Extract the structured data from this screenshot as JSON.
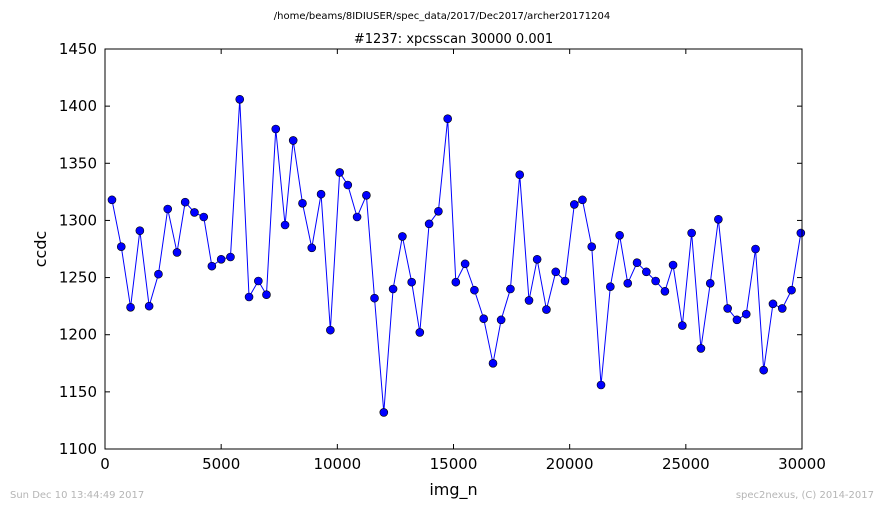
{
  "header": {
    "path": "/home/beams/8IDIUSER/spec_data/2017/Dec2017/archer20171204",
    "title": "#1237: xpcsscan 30000 0.001"
  },
  "footer": {
    "timestamp": "Sun Dec 10 13:44:49 2017",
    "credit": "spec2nexus, (C) 2014-2017"
  },
  "chart_data": {
    "type": "line",
    "title": "#1237: xpcsscan 30000 0.001",
    "xlabel": "img_n",
    "ylabel": "ccdc",
    "xlim": [
      0,
      30000
    ],
    "ylim": [
      1100,
      1450
    ],
    "xticks": [
      0,
      5000,
      10000,
      15000,
      20000,
      25000,
      30000
    ],
    "yticks": [
      1100,
      1150,
      1200,
      1250,
      1300,
      1350,
      1400,
      1450
    ],
    "grid": false,
    "legend": "none",
    "line_color": "#0000ff",
    "marker": "circle",
    "x": [
      300,
      700,
      1100,
      1500,
      1900,
      2300,
      2700,
      3100,
      3450,
      3850,
      4250,
      4600,
      5000,
      5400,
      5800,
      6200,
      6600,
      6950,
      7350,
      7750,
      8100,
      8500,
      8900,
      9300,
      9700,
      10100,
      10450,
      10850,
      11250,
      11600,
      12000,
      12400,
      12800,
      13200,
      13550,
      13950,
      14350,
      14750,
      15100,
      15500,
      15900,
      16300,
      16700,
      17050,
      17450,
      17850,
      18250,
      18600,
      19000,
      19400,
      19800,
      20200,
      20550,
      20950,
      21350,
      21750,
      22150,
      22500,
      22900,
      23300,
      23700,
      24100,
      24450,
      24850,
      25250,
      25650,
      26050,
      26400,
      26800,
      27200,
      27600,
      28000,
      28350,
      28750,
      29150,
      29550,
      29950
    ],
    "y": [
      1318,
      1277,
      1224,
      1291,
      1225,
      1253,
      1310,
      1272,
      1316,
      1307,
      1303,
      1260,
      1266,
      1268,
      1406,
      1233,
      1247,
      1235,
      1380,
      1296,
      1370,
      1315,
      1276,
      1323,
      1204,
      1342,
      1331,
      1303,
      1322,
      1232,
      1132,
      1240,
      1286,
      1246,
      1202,
      1297,
      1308,
      1389,
      1246,
      1262,
      1239,
      1214,
      1175,
      1213,
      1240,
      1340,
      1230,
      1266,
      1222,
      1255,
      1247,
      1314,
      1318,
      1277,
      1156,
      1242,
      1287,
      1245,
      1263,
      1255,
      1247,
      1238,
      1261,
      1208,
      1289,
      1188,
      1245,
      1301,
      1223,
      1213,
      1218,
      1275,
      1169,
      1227,
      1223,
      1239,
      1289
    ]
  }
}
